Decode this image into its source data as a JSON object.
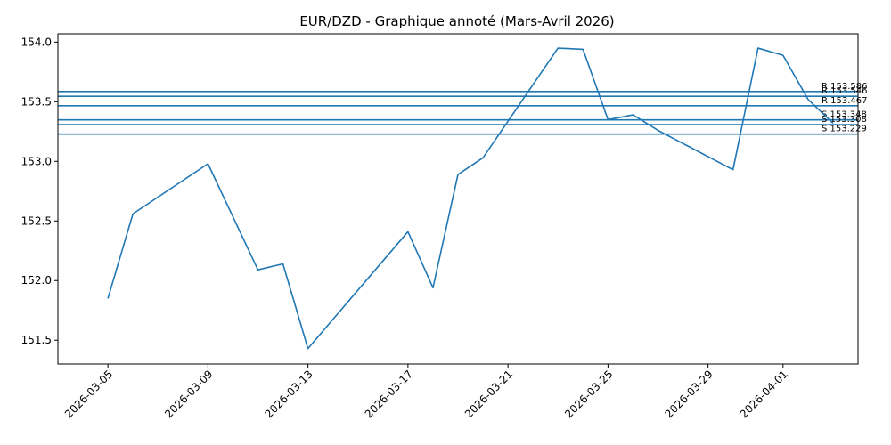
{
  "chart_data": {
    "type": "line",
    "title": "EUR/DZD - Graphique annoté (Mars-Avril 2026)",
    "xlabel": "",
    "ylabel": "",
    "xlim": [
      "2026-03-03",
      "2026-04-04"
    ],
    "ylim": [
      151.3,
      154.07
    ],
    "x_ticks": [
      "2026-03-05",
      "2026-03-09",
      "2026-03-13",
      "2026-03-17",
      "2026-03-21",
      "2026-03-25",
      "2026-03-29",
      "2026-04-01"
    ],
    "y_ticks": [
      "151.5",
      "152.0",
      "152.5",
      "153.0",
      "153.5",
      "154.0"
    ],
    "line_color": "#1f77b4",
    "grid": false,
    "series": [
      {
        "x": [
          "2026-03-05",
          "2026-03-06",
          "2026-03-09",
          "2026-03-11",
          "2026-03-12",
          "2026-03-13",
          "2026-03-17",
          "2026-03-18",
          "2026-03-19",
          "2026-03-20",
          "2026-03-23",
          "2026-03-24",
          "2026-03-25",
          "2026-03-26",
          "2026-03-27",
          "2026-03-30",
          "2026-03-31",
          "2026-04-01",
          "2026-04-02",
          "2026-04-03"
        ],
        "values": [
          151.85,
          152.56,
          152.98,
          152.09,
          152.14,
          151.43,
          152.41,
          151.94,
          152.89,
          153.03,
          153.95,
          153.94,
          153.35,
          153.39,
          153.26,
          152.93,
          153.95,
          153.89,
          153.52,
          153.32
        ]
      }
    ],
    "levels": [
      {
        "label": "R 153.586",
        "value": 153.586
      },
      {
        "label": "R 153.546",
        "value": 153.546
      },
      {
        "label": "R 153.467",
        "value": 153.467
      },
      {
        "label": "S 153.348",
        "value": 153.348
      },
      {
        "label": "S 153.308",
        "value": 153.308
      },
      {
        "label": "S 153.229",
        "value": 153.229
      }
    ]
  }
}
